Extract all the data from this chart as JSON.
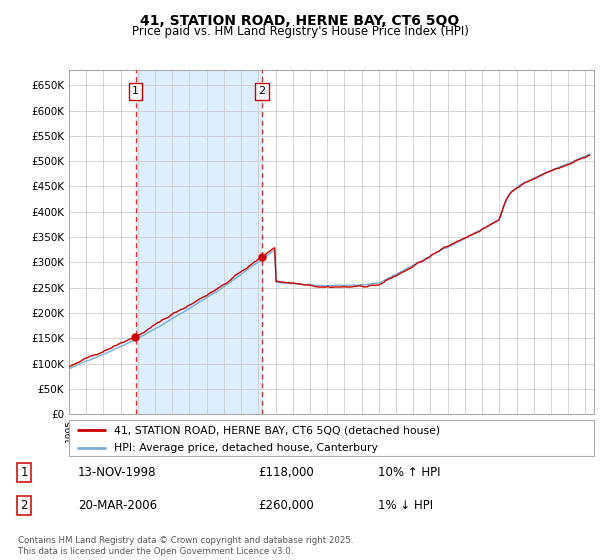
{
  "title": "41, STATION ROAD, HERNE BAY, CT6 5QQ",
  "subtitle": "Price paid vs. HM Land Registry's House Price Index (HPI)",
  "legend_label_red": "41, STATION ROAD, HERNE BAY, CT6 5QQ (detached house)",
  "legend_label_blue": "HPI: Average price, detached house, Canterbury",
  "transaction1_date": "13-NOV-1998",
  "transaction1_price": "£118,000",
  "transaction1_hpi": "10% ↑ HPI",
  "transaction2_date": "20-MAR-2006",
  "transaction2_price": "£260,000",
  "transaction2_hpi": "1% ↓ HPI",
  "footer": "Contains HM Land Registry data © Crown copyright and database right 2025.\nThis data is licensed under the Open Government Licence v3.0.",
  "red_color": "#cc0000",
  "blue_color": "#7aaed6",
  "shade_color": "#ddeeff",
  "grid_color": "#cccccc",
  "bg_color": "#ffffff",
  "trans1_x": 1998.87,
  "trans2_x": 2006.21,
  "trans1_y": 118000,
  "trans2_y": 260000,
  "xmin": 1995.0,
  "xmax": 2025.5,
  "ymin": 0,
  "ymax": 680000,
  "yticks": [
    0,
    50000,
    100000,
    150000,
    200000,
    250000,
    300000,
    350000,
    400000,
    450000,
    500000,
    550000,
    600000,
    650000
  ]
}
